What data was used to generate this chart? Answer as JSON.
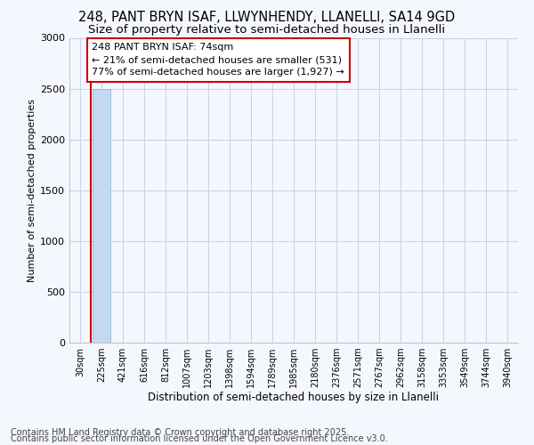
{
  "title1": "248, PANT BRYN ISAF, LLWYNHENDY, LLANELLI, SA14 9GD",
  "title2": "Size of property relative to semi-detached houses in Llanelli",
  "xlabel": "Distribution of semi-detached houses by size in Llanelli",
  "ylabel": "Number of semi-detached properties",
  "annotation_title": "248 PANT BRYN ISAF: 74sqm",
  "annotation_line2": "← 21% of semi-detached houses are smaller (531)",
  "annotation_line3": "77% of semi-detached houses are larger (1,927) →",
  "footer1": "Contains HM Land Registry data © Crown copyright and database right 2025.",
  "footer2": "Contains public sector information licensed under the Open Government Licence v3.0.",
  "categories": [
    "30sqm",
    "225sqm",
    "421sqm",
    "616sqm",
    "812sqm",
    "1007sqm",
    "1203sqm",
    "1398sqm",
    "1594sqm",
    "1789sqm",
    "1985sqm",
    "2180sqm",
    "2376sqm",
    "2571sqm",
    "2767sqm",
    "2962sqm",
    "3158sqm",
    "3353sqm",
    "3549sqm",
    "3744sqm",
    "3940sqm"
  ],
  "values": [
    2,
    2494,
    1,
    0,
    0,
    0,
    0,
    0,
    0,
    0,
    0,
    0,
    0,
    0,
    0,
    0,
    0,
    0,
    0,
    0,
    0
  ],
  "bar_color": "#c5d8f0",
  "bar_edge_color": "#7bafd4",
  "ylim": [
    0,
    3000
  ],
  "yticks": [
    0,
    500,
    1000,
    1500,
    2000,
    2500,
    3000
  ],
  "background_color": "#f5f7ff",
  "grid_color": "#c8d4e8",
  "annotation_box_facecolor": "#ffffff",
  "annotation_box_edgecolor": "#cc0000",
  "red_line_color": "#cc0000",
  "title_fontsize": 10.5,
  "subtitle_fontsize": 9.5,
  "footer_fontsize": 7.0,
  "annotation_fontsize": 8.0
}
